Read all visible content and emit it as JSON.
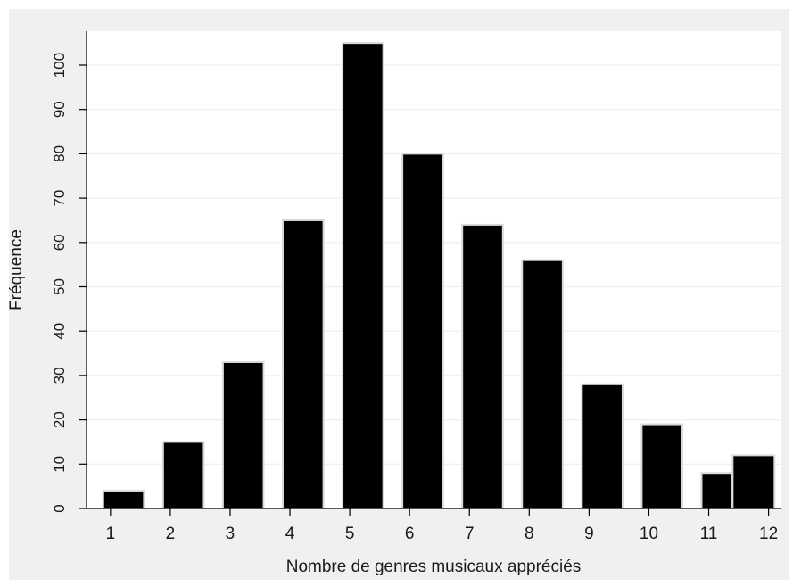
{
  "chart_data": {
    "type": "bar",
    "title": "",
    "xlabel": "Nombre de genres musicaux appréciés",
    "ylabel": "Fréquence",
    "x_ticks": [
      1,
      2,
      3,
      4,
      5,
      6,
      7,
      8,
      9,
      10,
      11,
      12
    ],
    "y_ticks": [
      0,
      10,
      20,
      30,
      40,
      50,
      60,
      70,
      80,
      90,
      100
    ],
    "xlim": [
      0.6,
      12.2
    ],
    "ylim": [
      0,
      105
    ],
    "grid": true,
    "bars": [
      {
        "x_start": 0.88,
        "x_end": 1.56,
        "value": 4
      },
      {
        "x_start": 1.88,
        "x_end": 2.56,
        "value": 15
      },
      {
        "x_start": 2.88,
        "x_end": 3.56,
        "value": 33
      },
      {
        "x_start": 3.88,
        "x_end": 4.56,
        "value": 65
      },
      {
        "x_start": 4.88,
        "x_end": 5.56,
        "value": 105
      },
      {
        "x_start": 5.88,
        "x_end": 6.56,
        "value": 80
      },
      {
        "x_start": 6.88,
        "x_end": 7.56,
        "value": 64
      },
      {
        "x_start": 7.88,
        "x_end": 8.56,
        "value": 56
      },
      {
        "x_start": 8.88,
        "x_end": 9.56,
        "value": 28
      },
      {
        "x_start": 9.88,
        "x_end": 10.56,
        "value": 19
      },
      {
        "x_start": 10.88,
        "x_end": 11.38,
        "value": 8
      },
      {
        "x_start": 11.4,
        "x_end": 12.1,
        "value": 12
      }
    ],
    "colors": {
      "bar_fill": "#000000",
      "bar_edge": "#d9d9d9",
      "plot_background": "#ffffff",
      "outer_background": "#f0f0f0",
      "grid": "#eeeeee",
      "axis": "#000000"
    }
  }
}
